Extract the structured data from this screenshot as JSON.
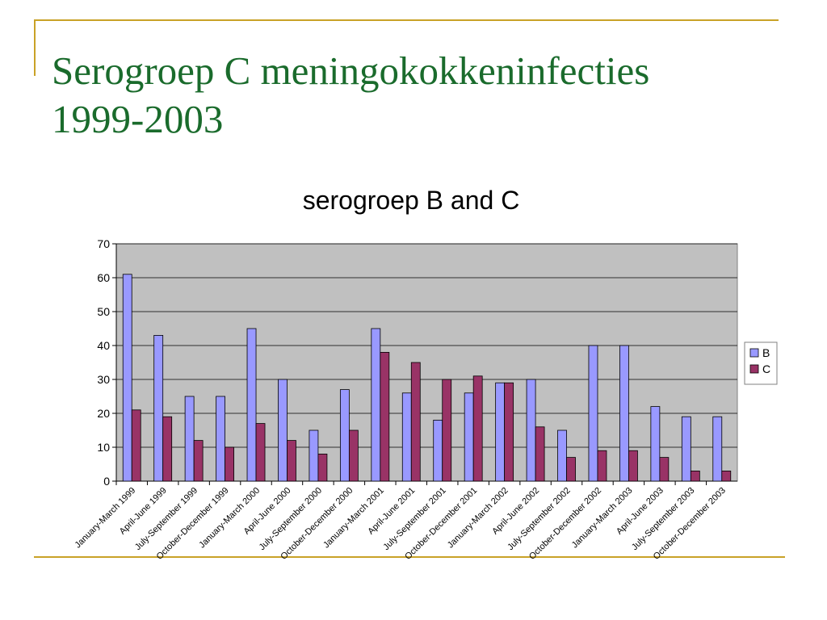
{
  "slide": {
    "title_line1": "Serogroep C meningokokkeninfecties",
    "title_line2": "1999-2003",
    "accent_color": "#c9a227",
    "title_color": "#1a6b2c"
  },
  "chart_data": {
    "type": "bar",
    "title": "serogroep B and C",
    "xlabel": "",
    "ylabel": "",
    "ylim": [
      0,
      70
    ],
    "yticks": [
      0,
      10,
      20,
      30,
      40,
      50,
      60,
      70
    ],
    "grid": true,
    "legend": "right",
    "plot_background": "#c0c0c0",
    "categories": [
      "January-March 1999",
      "April-June 1999",
      "July-September 1999",
      "October-December 1999",
      "January-March 2000",
      "April-June 2000",
      "July-September 2000",
      "October-December 2000",
      "January-March 2001",
      "April-June 2001",
      "July-September 2001",
      "October-December 2001",
      "January-March 2002",
      "April-June 2002",
      "July-September 2002",
      "October-December 2002",
      "January-March 2003",
      "April-June 2003",
      "July-September 2003",
      "October-December 2003"
    ],
    "series": [
      {
        "name": "B",
        "color": "#9999ff",
        "values": [
          61,
          43,
          25,
          25,
          45,
          30,
          15,
          27,
          45,
          26,
          18,
          26,
          29,
          30,
          15,
          40,
          40,
          22,
          19,
          19
        ]
      },
      {
        "name": "C",
        "color": "#993366",
        "values": [
          21,
          19,
          12,
          10,
          17,
          12,
          8,
          15,
          38,
          35,
          30,
          31,
          29,
          16,
          7,
          9,
          9,
          7,
          3,
          3
        ]
      }
    ]
  }
}
